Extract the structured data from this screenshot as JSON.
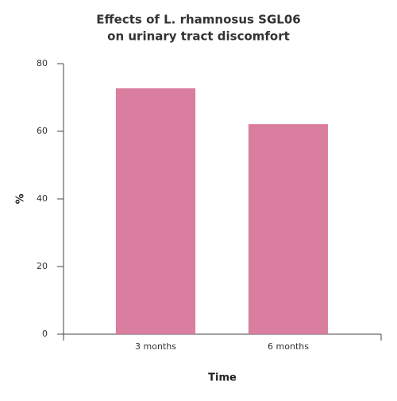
{
  "chart_data": {
    "type": "bar",
    "title": [
      "Effects of L. rhamnosus SGL06",
      "on urinary tract discomfort"
    ],
    "x_label": "Time",
    "y_label": "%",
    "categories": [
      "3 months",
      "6 months"
    ],
    "values": [
      72.7,
      62.1
    ],
    "color": "#d97e9e",
    "ylim": [
      0,
      80
    ],
    "yticks": [
      0,
      20,
      40,
      60,
      80
    ],
    "grid": false
  }
}
